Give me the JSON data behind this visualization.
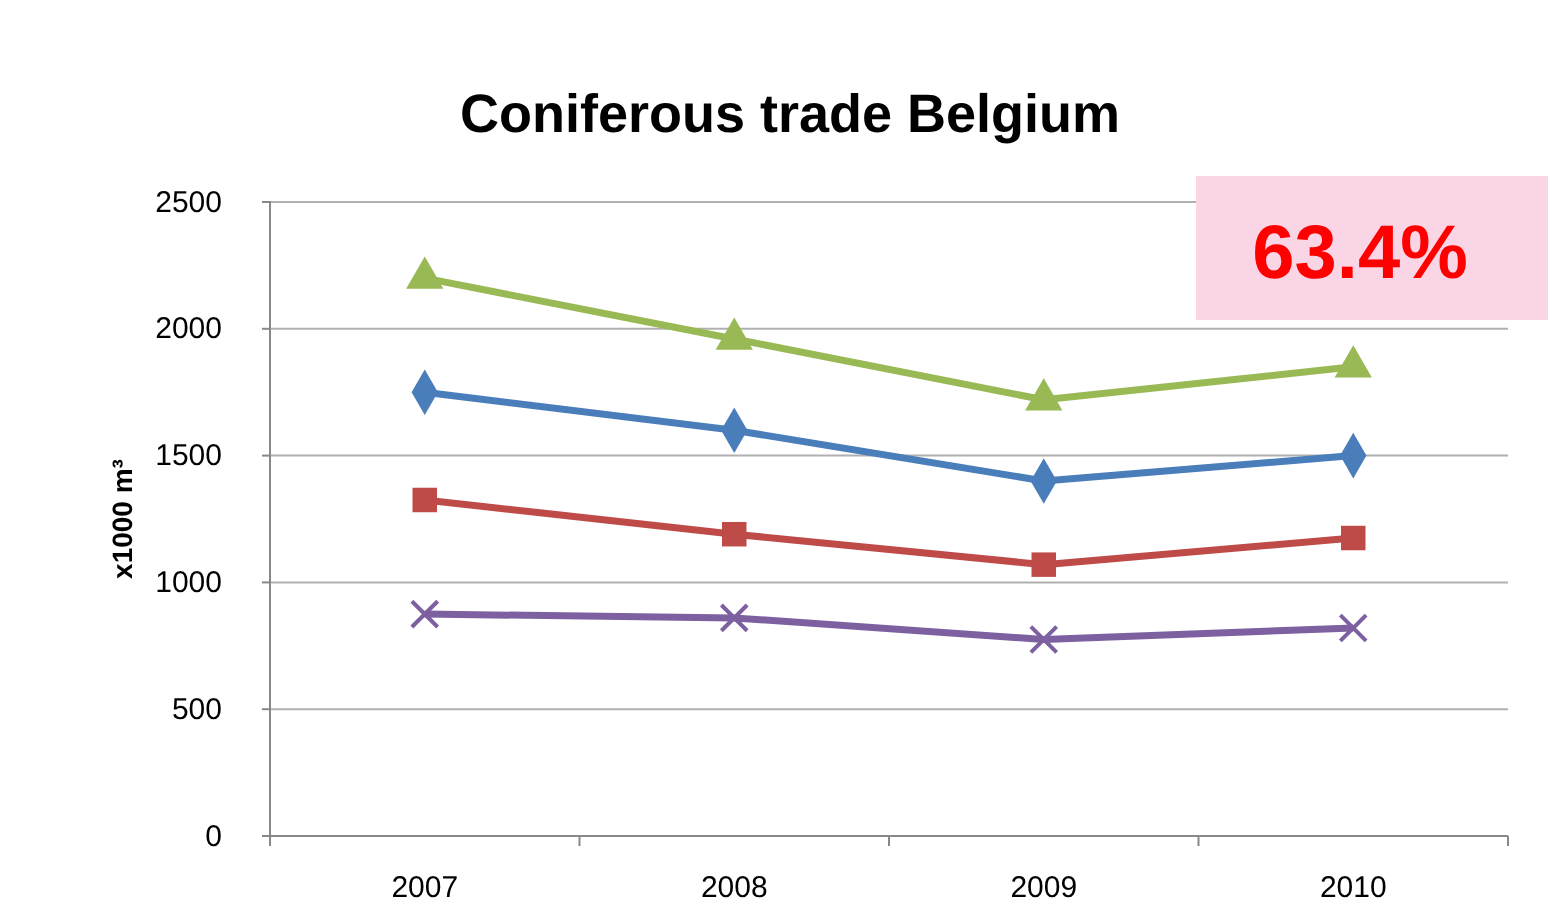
{
  "chart_data": {
    "type": "line",
    "title": "Coniferous trade Belgium",
    "ylabel": "x1000 m³",
    "categories": [
      "2007",
      "2008",
      "2009",
      "2010"
    ],
    "series": [
      {
        "color": "#98b954",
        "marker": "triangle",
        "values": [
          2200,
          1960,
          1720,
          1850
        ]
      },
      {
        "color": "#4a7ebb",
        "marker": "diamond",
        "values": [
          1750,
          1600,
          1400,
          1500
        ]
      },
      {
        "color": "#be4b48",
        "marker": "square",
        "values": [
          1325,
          1190,
          1070,
          1175
        ]
      },
      {
        "color": "#7d60a0",
        "marker": "cross",
        "values": [
          875,
          860,
          775,
          820
        ]
      }
    ],
    "ylim": [
      0,
      2500
    ],
    "yticks": [
      0,
      500,
      1000,
      1500,
      2000,
      2500
    ],
    "grid": "y",
    "line_style": "solid",
    "annotations": [
      "63.4%"
    ]
  }
}
